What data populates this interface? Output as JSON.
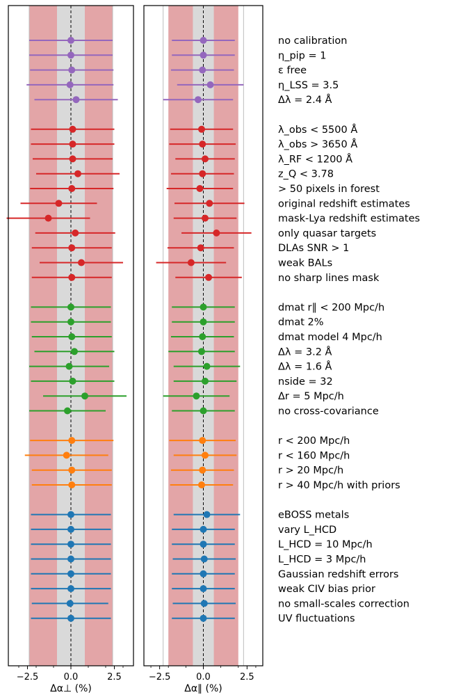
{
  "chart_data": {
    "type": "forest-errorbar",
    "colors": {
      "purple": "#9467bd",
      "red": "#d62728",
      "green": "#2ca02c",
      "orange": "#ff7f0e",
      "blue": "#1f77b4",
      "red_band": "#e3a5a7",
      "gray_band": "#d9d9d9"
    },
    "panels": [
      {
        "name": "alpha-perp",
        "xlabel": "Δα⊥ (%)",
        "xlim": [
          -3.6,
          3.6
        ],
        "ticks": [
          -2.5,
          0.0,
          2.5
        ],
        "tick_labels": [
          "−2.5",
          "0.0",
          "2.5"
        ],
        "gray_band": [
          -0.8,
          0.8
        ],
        "red_band": [
          -2.4,
          2.4
        ],
        "vlines": [
          -2.4,
          2.4
        ]
      },
      {
        "name": "alpha-par",
        "xlabel": "Δα∥ (%)",
        "xlim": [
          -3.4,
          3.4
        ],
        "ticks": [
          -2.5,
          0.0,
          2.5
        ],
        "tick_labels": [
          "−2.5",
          "0.0",
          "2.5"
        ],
        "gray_band": [
          -0.6,
          0.6
        ],
        "red_band": [
          -2.0,
          2.0
        ],
        "vlines": [
          -2.3,
          2.3
        ]
      }
    ],
    "groups": [
      {
        "color": "purple",
        "rows": [
          {
            "label": "no calibration",
            "perp": [
              0.0,
              2.4
            ],
            "par": [
              0.0,
              1.8
            ]
          },
          {
            "label": "η_pip = 1",
            "perp": [
              0.0,
              2.4
            ],
            "par": [
              0.0,
              1.8
            ]
          },
          {
            "label": "ε free",
            "perp": [
              0.05,
              2.4
            ],
            "par": [
              -0.05,
              1.8
            ]
          },
          {
            "label": "η_LSS = 3.5",
            "perp": [
              -0.05,
              2.5
            ],
            "par": [
              0.4,
              1.9
            ]
          },
          {
            "label": "Δλ = 2.4 Å",
            "perp": [
              0.3,
              2.4
            ],
            "par": [
              -0.3,
              2.0
            ]
          }
        ]
      },
      {
        "color": "red",
        "rows": [
          {
            "label": "λ_obs < 5500 Å",
            "perp": [
              0.1,
              2.4
            ],
            "par": [
              -0.1,
              1.8
            ]
          },
          {
            "label": "λ_obs > 3650 Å",
            "perp": [
              0.1,
              2.4
            ],
            "par": [
              -0.05,
              1.9
            ]
          },
          {
            "label": "λ_RF < 1200 Å",
            "perp": [
              0.1,
              2.3
            ],
            "par": [
              0.1,
              1.7
            ]
          },
          {
            "label": "z_Q < 3.78",
            "perp": [
              0.4,
              2.4
            ],
            "par": [
              -0.05,
              1.8
            ]
          },
          {
            "label": "> 50 pixels in forest",
            "perp": [
              0.05,
              2.4
            ],
            "par": [
              -0.2,
              1.9
            ]
          },
          {
            "label": "original redshift estimates",
            "perp": [
              -0.7,
              2.2
            ],
            "par": [
              0.35,
              2.0
            ]
          },
          {
            "label": "mask-Lya redshift estimates",
            "perp": [
              -1.3,
              2.4
            ],
            "par": [
              0.1,
              1.8
            ]
          },
          {
            "label": "only quasar targets",
            "perp": [
              0.25,
              2.3
            ],
            "par": [
              0.75,
              2.0
            ]
          },
          {
            "label": "DLAs SNR > 1",
            "perp": [
              0.05,
              2.3
            ],
            "par": [
              -0.15,
              1.9
            ]
          },
          {
            "label": "weak BALs",
            "perp": [
              0.6,
              2.4
            ],
            "par": [
              -0.7,
              2.0
            ]
          },
          {
            "label": "no sharp lines mask",
            "perp": [
              0.05,
              2.3
            ],
            "par": [
              0.3,
              1.9
            ]
          }
        ]
      },
      {
        "color": "green",
        "rows": [
          {
            "label": "dmat r∥ < 200 Mpc/h",
            "perp": [
              0.0,
              2.3
            ],
            "par": [
              0.0,
              1.8
            ]
          },
          {
            "label": "dmat 2%",
            "perp": [
              0.0,
              2.3
            ],
            "par": [
              0.0,
              1.8
            ]
          },
          {
            "label": "dmat model 4 Mpc/h",
            "perp": [
              0.05,
              2.3
            ],
            "par": [
              -0.05,
              1.8
            ]
          },
          {
            "label": "Δλ = 3.2 Å",
            "perp": [
              0.2,
              2.3
            ],
            "par": [
              -0.1,
              1.9
            ]
          },
          {
            "label": "Δλ = 1.6 Å",
            "perp": [
              -0.1,
              2.3
            ],
            "par": [
              0.2,
              1.9
            ]
          },
          {
            "label": "nside = 32",
            "perp": [
              0.1,
              2.4
            ],
            "par": [
              0.1,
              1.8
            ]
          },
          {
            "label": "Δr = 5 Mpc/h",
            "perp": [
              0.8,
              2.4
            ],
            "par": [
              -0.4,
              1.9
            ]
          },
          {
            "label": "no cross-covariance",
            "perp": [
              -0.2,
              2.2
            ],
            "par": [
              0.0,
              1.8
            ]
          }
        ]
      },
      {
        "color": "orange",
        "rows": [
          {
            "label": "r < 200 Mpc/h",
            "perp": [
              0.05,
              2.4
            ],
            "par": [
              -0.05,
              1.9
            ]
          },
          {
            "label": "r < 160 Mpc/h",
            "perp": [
              -0.25,
              2.4
            ],
            "par": [
              0.1,
              1.8
            ]
          },
          {
            "label": "r > 20 Mpc/h",
            "perp": [
              0.05,
              2.3
            ],
            "par": [
              -0.05,
              1.8
            ]
          },
          {
            "label": "r > 40 Mpc/h with priors",
            "perp": [
              0.05,
              2.3
            ],
            "par": [
              -0.1,
              1.8
            ]
          }
        ]
      },
      {
        "color": "blue",
        "rows": [
          {
            "label": "eBOSS metals",
            "perp": [
              0.0,
              2.3
            ],
            "par": [
              0.2,
              1.9
            ]
          },
          {
            "label": "vary L_HCD",
            "perp": [
              0.0,
              2.3
            ],
            "par": [
              0.0,
              1.8
            ]
          },
          {
            "label": "L_HCD = 10 Mpc/h",
            "perp": [
              0.0,
              2.3
            ],
            "par": [
              0.0,
              1.8
            ]
          },
          {
            "label": "L_HCD = 3 Mpc/h",
            "perp": [
              0.0,
              2.3
            ],
            "par": [
              0.05,
              1.8
            ]
          },
          {
            "label": "Gaussian redshift errors",
            "perp": [
              0.0,
              2.3
            ],
            "par": [
              0.0,
              1.8
            ]
          },
          {
            "label": "weak CIV bias prior",
            "perp": [
              0.0,
              2.3
            ],
            "par": [
              0.0,
              1.8
            ]
          },
          {
            "label": "no small-scales correction",
            "perp": [
              -0.05,
              2.2
            ],
            "par": [
              0.05,
              1.8
            ]
          },
          {
            "label": "UV fluctuations",
            "perp": [
              0.0,
              2.3
            ],
            "par": [
              0.0,
              1.8
            ]
          }
        ]
      }
    ]
  }
}
